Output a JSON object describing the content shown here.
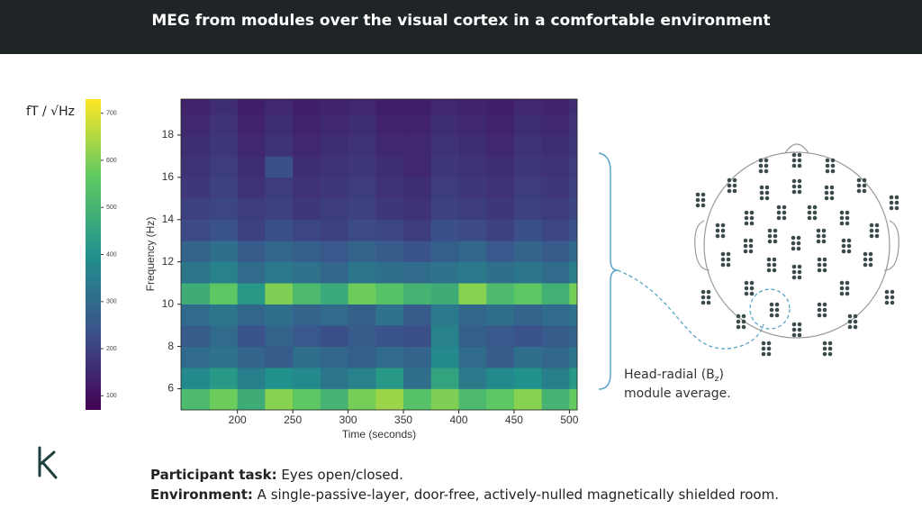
{
  "header": {
    "title": "MEG from modules over the visual cortex in a comfortable environment"
  },
  "chart_data": {
    "type": "heatmap",
    "colormap": "viridis",
    "x_label": "Time (seconds)",
    "y_label": "Frequency (Hz)",
    "x_bins": [
      149,
      175,
      200,
      225,
      250,
      275,
      300,
      325,
      350,
      375,
      400,
      425,
      450,
      475,
      500,
      507
    ],
    "y_bins": [
      5,
      6,
      7,
      8,
      9,
      10,
      11,
      12,
      13,
      14,
      15,
      16,
      17,
      18,
      19,
      19.7
    ],
    "xlim": [
      149,
      507
    ],
    "ylim": [
      5,
      19.7
    ],
    "xticks": [
      200,
      250,
      300,
      350,
      400,
      450,
      500
    ],
    "yticks": [
      6,
      8,
      10,
      12,
      14,
      16,
      18
    ],
    "z": [
      [
        520,
        580,
        480,
        610,
        560,
        500,
        590,
        630,
        540,
        600,
        520,
        560,
        610,
        500,
        570
      ],
      [
        380,
        420,
        350,
        400,
        380,
        330,
        360,
        420,
        310,
        450,
        340,
        380,
        400,
        350,
        420
      ],
      [
        300,
        320,
        280,
        260,
        310,
        290,
        270,
        300,
        280,
        380,
        300,
        260,
        310,
        290,
        330
      ],
      [
        260,
        300,
        240,
        280,
        250,
        230,
        260,
        240,
        230,
        360,
        270,
        250,
        240,
        260,
        280
      ],
      [
        300,
        330,
        290,
        310,
        280,
        300,
        270,
        320,
        260,
        340,
        290,
        310,
        280,
        300,
        320
      ],
      [
        480,
        560,
        420,
        600,
        520,
        470,
        580,
        540,
        500,
        480,
        610,
        520,
        560,
        490,
        590
      ],
      [
        330,
        360,
        300,
        340,
        320,
        290,
        330,
        310,
        300,
        320,
        340,
        310,
        330,
        300,
        350
      ],
      [
        280,
        310,
        260,
        290,
        270,
        250,
        280,
        260,
        240,
        270,
        290,
        250,
        280,
        260,
        300
      ],
      [
        220,
        240,
        200,
        230,
        210,
        200,
        220,
        210,
        190,
        230,
        220,
        200,
        230,
        210,
        240
      ],
      [
        200,
        210,
        190,
        200,
        180,
        190,
        200,
        180,
        170,
        200,
        190,
        180,
        200,
        190,
        210
      ],
      [
        180,
        200,
        170,
        190,
        170,
        180,
        190,
        170,
        160,
        190,
        180,
        170,
        190,
        180,
        200
      ],
      [
        170,
        190,
        160,
        230,
        160,
        170,
        180,
        160,
        150,
        180,
        170,
        160,
        180,
        170,
        190
      ],
      [
        160,
        180,
        150,
        170,
        150,
        160,
        170,
        150,
        150,
        170,
        160,
        150,
        170,
        160,
        180
      ],
      [
        150,
        170,
        140,
        160,
        140,
        150,
        160,
        140,
        140,
        160,
        150,
        140,
        160,
        150,
        170
      ],
      [
        140,
        160,
        130,
        150,
        130,
        140,
        150,
        130,
        130,
        150,
        140,
        130,
        150,
        140,
        160
      ]
    ],
    "colorbar_label": "fT / √Hz",
    "clim": [
      70,
      730
    ],
    "colorbar_ticks": [
      100,
      200,
      300,
      400,
      500,
      600,
      700
    ]
  },
  "annotation": {
    "prefix": "Head-radial (B",
    "subscript": "z",
    "suffix": ")",
    "line2": "module average."
  },
  "footer": {
    "task_label": "Participant task:",
    "task_text": " Eyes open/closed.",
    "env_label": "Environment:",
    "env_text": " A single-passive-layer, door-free, actively-nulled magnetically shielded room."
  }
}
